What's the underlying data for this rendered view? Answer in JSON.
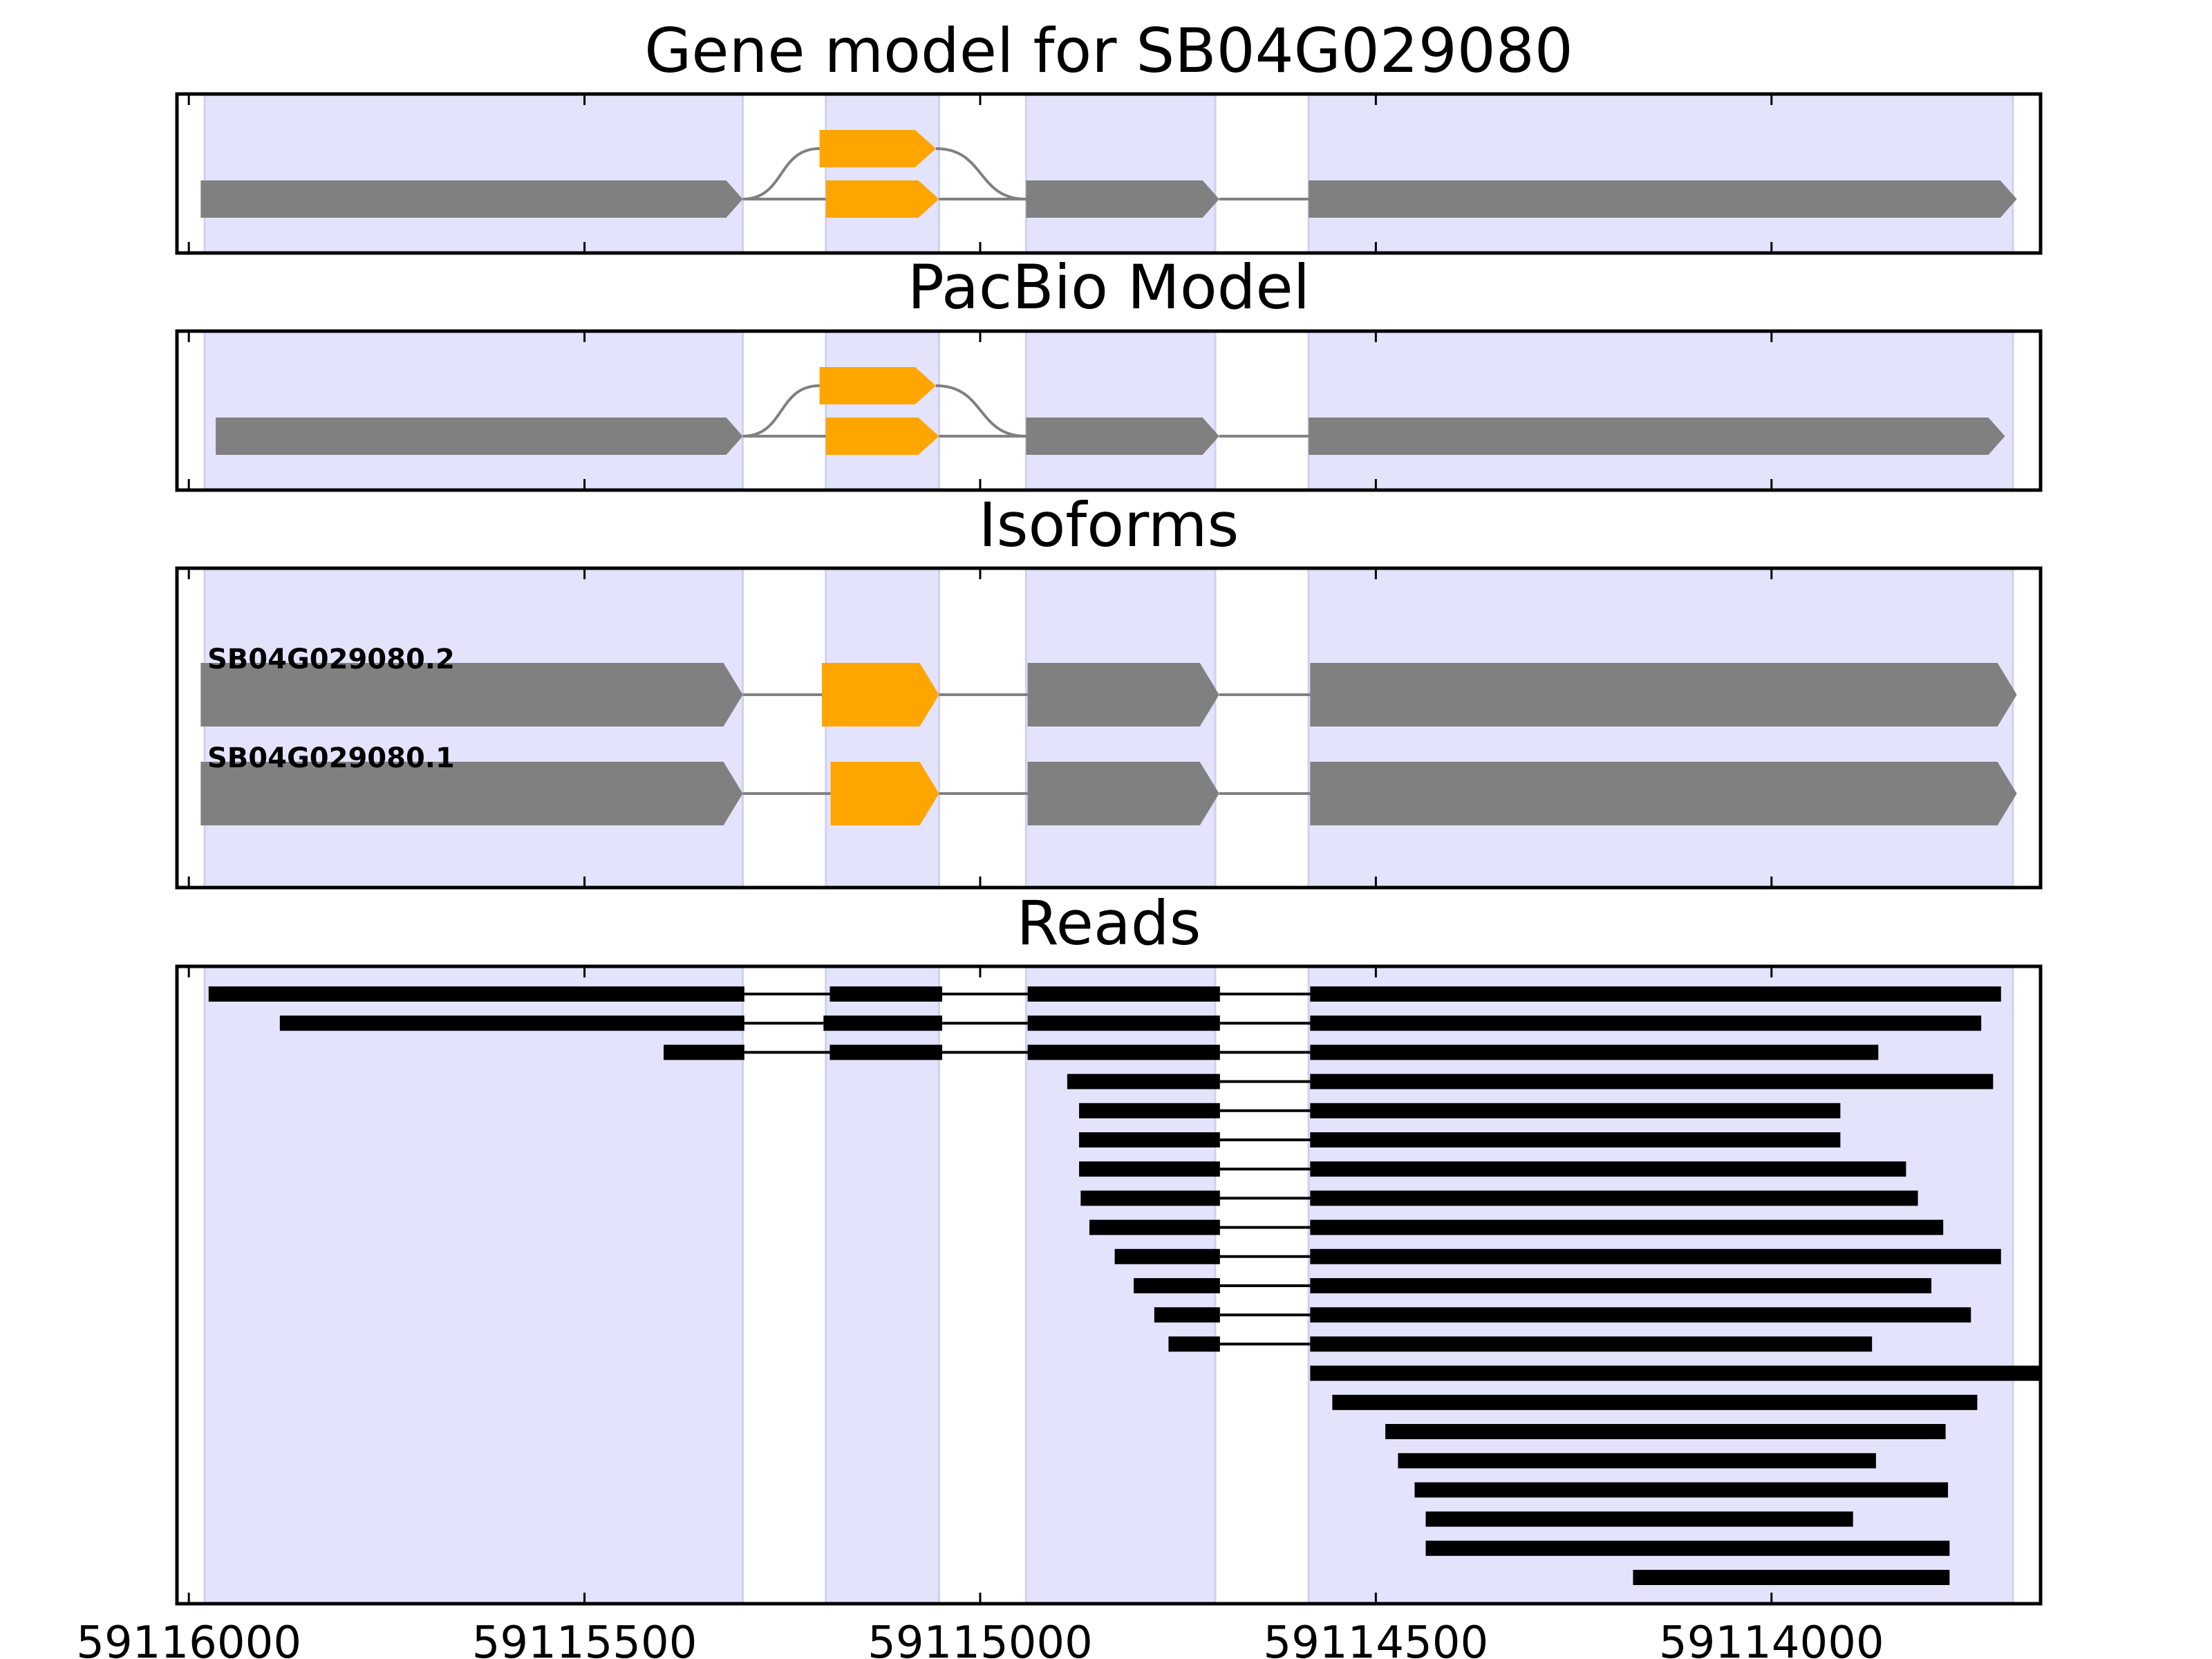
{
  "colors": {
    "exon_band": "#e3e3fc",
    "gene_body": "#808080",
    "alt_exon": "#ffa500",
    "read": "#000000",
    "frame": "#000000"
  },
  "axis": {
    "min": 59113660,
    "max": 59116015,
    "direction": "reversed",
    "ticks": [
      59116000,
      59115500,
      59115000,
      59114500,
      59114000
    ],
    "tick_labels": [
      "59116000",
      "59115500",
      "59115000",
      "59114500",
      "59114000"
    ]
  },
  "exon_regions": [
    [
      59115980,
      59115300
    ],
    [
      59115195,
      59115052
    ],
    [
      59114942,
      59114703
    ],
    [
      59114585,
      59113695
    ]
  ],
  "panels": {
    "gene_model": {
      "title": "Gene model for SB04G029080",
      "main_segments": [
        [
          59115985,
          59115300
        ],
        [
          59114942,
          59114698
        ],
        [
          59114585,
          59113690
        ]
      ],
      "alt_exons": [
        [
          59115203,
          59115056
        ],
        [
          59115195,
          59115052
        ]
      ]
    },
    "pacbio_model": {
      "title": "PacBio Model",
      "main_segments": [
        [
          59115966,
          59115300
        ],
        [
          59114942,
          59114698
        ],
        [
          59114585,
          59113705
        ]
      ],
      "alt_exons": [
        [
          59115203,
          59115056
        ],
        [
          59115195,
          59115052
        ]
      ]
    },
    "isoforms": {
      "title": "Isoforms",
      "items": [
        {
          "label": "SB04G029080.2",
          "exons": [
            [
              59115985,
              59115300
            ],
            [
              59115200,
              59115052
            ],
            [
              59114940,
              59114698
            ],
            [
              59114583,
              59113690
            ]
          ],
          "alt_index": 1
        },
        {
          "label": "SB04G029080.1",
          "exons": [
            [
              59115985,
              59115300
            ],
            [
              59115189,
              59115052
            ],
            [
              59114940,
              59114698
            ],
            [
              59114583,
              59113690
            ]
          ],
          "alt_index": 1
        }
      ]
    },
    "reads": {
      "title": "Reads",
      "rows": [
        [
          [
            59115975,
            59115298
          ],
          [
            59115190,
            59115048
          ],
          [
            59114940,
            59114697
          ],
          [
            59114583,
            59113710
          ]
        ],
        [
          [
            59115885,
            59115298
          ],
          [
            59115198,
            59115048
          ],
          [
            59114940,
            59114697
          ],
          [
            59114583,
            59113735
          ]
        ],
        [
          [
            59115400,
            59115298
          ],
          [
            59115190,
            59115048
          ],
          [
            59114940,
            59114697
          ],
          [
            59114583,
            59113865
          ]
        ],
        [
          [
            59114890,
            59114697
          ],
          [
            59114583,
            59113720
          ]
        ],
        [
          [
            59114875,
            59114697
          ],
          [
            59114583,
            59113913
          ]
        ],
        [
          [
            59114875,
            59114697
          ],
          [
            59114583,
            59113913
          ]
        ],
        [
          [
            59114875,
            59114697
          ],
          [
            59114583,
            59113830
          ]
        ],
        [
          [
            59114873,
            59114697
          ],
          [
            59114583,
            59113815
          ]
        ],
        [
          [
            59114862,
            59114697
          ],
          [
            59114583,
            59113783
          ]
        ],
        [
          [
            59114830,
            59114697
          ],
          [
            59114583,
            59113710
          ]
        ],
        [
          [
            59114806,
            59114697
          ],
          [
            59114583,
            59113798
          ]
        ],
        [
          [
            59114780,
            59114697
          ],
          [
            59114583,
            59113748
          ]
        ],
        [
          [
            59114762,
            59114697
          ],
          [
            59114583,
            59113873
          ]
        ],
        [
          [
            59114583,
            59113660
          ]
        ],
        [
          [
            59114555,
            59113740
          ]
        ],
        [
          [
            59114488,
            59113780
          ]
        ],
        [
          [
            59114472,
            59113868
          ]
        ],
        [
          [
            59114451,
            59113777
          ]
        ],
        [
          [
            59114437,
            59113897
          ]
        ],
        [
          [
            59114437,
            59113775
          ]
        ],
        [
          [
            59114175,
            59113775
          ]
        ]
      ]
    }
  }
}
